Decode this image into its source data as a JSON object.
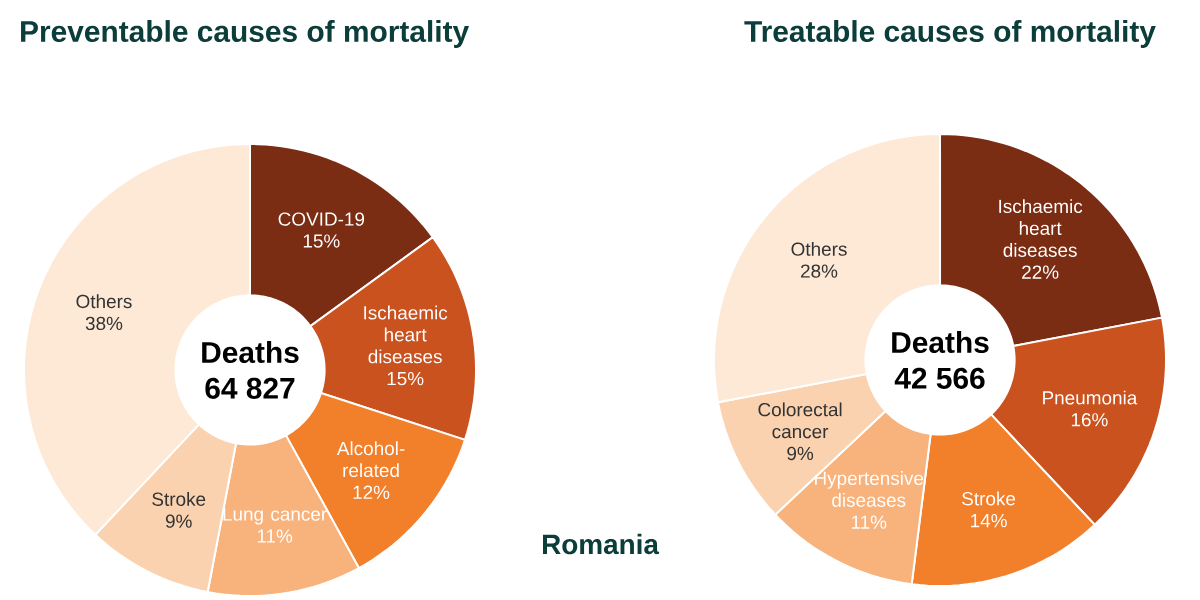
{
  "chart_data": [
    {
      "type": "donut",
      "title": "Preventable causes of mortality",
      "categories": [
        "COVID-19",
        "Ischaemic heart diseases",
        "Alcohol-related",
        "Lung cancer",
        "Stroke",
        "Others"
      ],
      "values": [
        15,
        15,
        12,
        11,
        9,
        38
      ],
      "value_labels": [
        "15%",
        "15%",
        "12%",
        "11%",
        "9%",
        "38%"
      ],
      "colors": [
        "#7b2d14",
        "#c9521f",
        "#f27f2a",
        "#f8b27c",
        "#fbd2af",
        "#fde9d6"
      ],
      "annotations": [
        "Deaths",
        "64 827"
      ]
    },
    {
      "type": "donut",
      "title": "Treatable causes of mortality",
      "categories": [
        "Ischaemic heart diseases",
        "Pneumonia",
        "Stroke",
        "Hypertensive diseases",
        "Colorectal cancer",
        "Others"
      ],
      "values": [
        22,
        16,
        14,
        11,
        9,
        28
      ],
      "value_labels": [
        "22%",
        "16%",
        "14%",
        "11%",
        "9%",
        "28%"
      ],
      "colors": [
        "#7b2d14",
        "#c9521f",
        "#f27f2a",
        "#f8b27c",
        "#fbd2af",
        "#fde9d6"
      ],
      "annotations": [
        "Deaths",
        "42 566",
        "Romania"
      ]
    }
  ]
}
